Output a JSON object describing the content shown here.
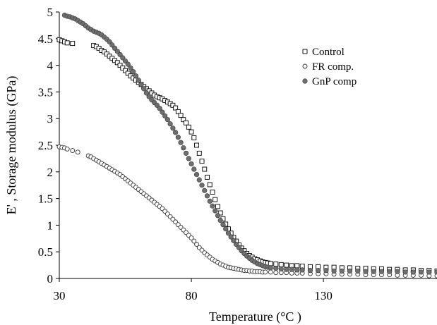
{
  "chart_data": {
    "type": "scatter",
    "title": "",
    "xlabel": "Temperature (°C )",
    "ylabel": "E' , Storage modulus (GPa)",
    "xlim": [
      30,
      173
    ],
    "ylim": [
      0,
      5
    ],
    "x_ticks": [
      30,
      80,
      130
    ],
    "y_ticks": [
      0,
      0.5,
      1,
      1.5,
      2,
      2.5,
      3,
      3.5,
      4,
      4.5,
      5
    ],
    "grid": false,
    "legend_position": "top-right",
    "series": [
      {
        "name": "Control",
        "marker": "square-open",
        "color": "#000000",
        "x": [
          30,
          31,
          32,
          33,
          35,
          43,
          44,
          45,
          46,
          47,
          48,
          49,
          50,
          51,
          52,
          53,
          54,
          55,
          56,
          57,
          58,
          59,
          60,
          61,
          62,
          63,
          64,
          65,
          66,
          67,
          68,
          69,
          70,
          71,
          72,
          73,
          74,
          75,
          76,
          77,
          78,
          79,
          80,
          81,
          82,
          83,
          84,
          85,
          86,
          87,
          88,
          89,
          90,
          91,
          92,
          93,
          94,
          95,
          96,
          97,
          98,
          99,
          100,
          101,
          102,
          103,
          104,
          105,
          106,
          107,
          108,
          109,
          110,
          112,
          114,
          116,
          118,
          120,
          122,
          125,
          128,
          131,
          134,
          137,
          140,
          143,
          146,
          149,
          152,
          155,
          158,
          161,
          164,
          167,
          170,
          173
        ],
        "y": [
          4.48,
          4.46,
          4.44,
          4.42,
          4.41,
          4.37,
          4.35,
          4.32,
          4.28,
          4.25,
          4.21,
          4.17,
          4.13,
          4.09,
          4.05,
          4.0,
          3.95,
          3.9,
          3.85,
          3.8,
          3.76,
          3.72,
          3.68,
          3.64,
          3.6,
          3.56,
          3.52,
          3.48,
          3.44,
          3.41,
          3.39,
          3.37,
          3.34,
          3.31,
          3.28,
          3.25,
          3.2,
          3.13,
          3.06,
          2.98,
          2.92,
          2.84,
          2.75,
          2.64,
          2.5,
          2.35,
          2.2,
          2.05,
          1.9,
          1.76,
          1.62,
          1.48,
          1.35,
          1.23,
          1.12,
          1.02,
          0.93,
          0.85,
          0.77,
          0.7,
          0.63,
          0.57,
          0.52,
          0.47,
          0.43,
          0.4,
          0.37,
          0.35,
          0.33,
          0.31,
          0.3,
          0.29,
          0.28,
          0.27,
          0.26,
          0.25,
          0.24,
          0.24,
          0.23,
          0.22,
          0.22,
          0.21,
          0.21,
          0.2,
          0.2,
          0.19,
          0.19,
          0.18,
          0.18,
          0.17,
          0.17,
          0.16,
          0.16,
          0.15,
          0.15,
          0.14
        ]
      },
      {
        "name": "FR comp.",
        "marker": "circle-open",
        "color": "#000000",
        "x": [
          30,
          31,
          32,
          33,
          35,
          37,
          41,
          42,
          43,
          44,
          45,
          46,
          47,
          48,
          49,
          50,
          51,
          52,
          53,
          54,
          55,
          56,
          57,
          58,
          59,
          60,
          61,
          62,
          63,
          64,
          65,
          66,
          67,
          68,
          69,
          70,
          71,
          72,
          73,
          74,
          75,
          76,
          77,
          78,
          79,
          80,
          81,
          82,
          83,
          84,
          85,
          86,
          87,
          88,
          89,
          90,
          91,
          92,
          93,
          94,
          95,
          96,
          97,
          98,
          99,
          100,
          101,
          102,
          103,
          104,
          105,
          106,
          107,
          108,
          110,
          112,
          114,
          116,
          118,
          120,
          122,
          125,
          128,
          131,
          134,
          137,
          140,
          143,
          146,
          149,
          152,
          155,
          158,
          161,
          164,
          167,
          170,
          173
        ],
        "y": [
          2.47,
          2.46,
          2.45,
          2.43,
          2.4,
          2.37,
          2.3,
          2.28,
          2.25,
          2.22,
          2.19,
          2.16,
          2.13,
          2.1,
          2.07,
          2.04,
          2.01,
          1.98,
          1.95,
          1.91,
          1.87,
          1.83,
          1.79,
          1.75,
          1.71,
          1.67,
          1.63,
          1.59,
          1.55,
          1.51,
          1.47,
          1.43,
          1.39,
          1.35,
          1.31,
          1.26,
          1.21,
          1.16,
          1.11,
          1.06,
          1.01,
          0.96,
          0.91,
          0.86,
          0.81,
          0.76,
          0.7,
          0.64,
          0.58,
          0.53,
          0.48,
          0.44,
          0.4,
          0.36,
          0.33,
          0.3,
          0.27,
          0.25,
          0.23,
          0.21,
          0.2,
          0.19,
          0.18,
          0.17,
          0.16,
          0.15,
          0.15,
          0.14,
          0.14,
          0.13,
          0.13,
          0.13,
          0.12,
          0.12,
          0.12,
          0.11,
          0.11,
          0.11,
          0.1,
          0.1,
          0.1,
          0.09,
          0.09,
          0.09,
          0.08,
          0.08,
          0.08,
          0.08,
          0.07,
          0.07,
          0.07,
          0.07,
          0.06,
          0.06,
          0.06,
          0.06,
          0.05,
          0.05
        ]
      },
      {
        "name": "GnP comp",
        "marker": "circle-filled",
        "color": "#6f6f6f",
        "x": [
          32,
          33,
          34,
          35,
          36,
          37,
          38,
          39,
          40,
          41,
          42,
          43,
          44,
          45,
          46,
          47,
          48,
          49,
          50,
          51,
          52,
          53,
          54,
          55,
          56,
          57,
          58,
          59,
          60,
          61,
          62,
          63,
          64,
          65,
          66,
          67,
          68,
          69,
          70,
          71,
          72,
          73,
          74,
          75,
          76,
          77,
          78,
          79,
          80,
          81,
          82,
          83,
          84,
          85,
          86,
          87,
          88,
          89,
          90,
          91,
          92,
          93,
          94,
          95,
          96,
          97,
          98,
          99,
          100,
          101,
          102,
          103,
          104,
          105,
          106,
          107,
          108,
          109,
          110,
          112,
          114,
          116,
          118,
          120,
          122,
          125,
          128,
          131,
          134,
          137,
          140,
          143,
          146,
          149,
          152,
          155,
          158,
          161,
          164,
          167,
          170,
          173
        ],
        "y": [
          4.94,
          4.92,
          4.91,
          4.89,
          4.87,
          4.84,
          4.81,
          4.78,
          4.74,
          4.7,
          4.67,
          4.64,
          4.62,
          4.6,
          4.57,
          4.53,
          4.49,
          4.44,
          4.38,
          4.32,
          4.26,
          4.2,
          4.14,
          4.08,
          4.02,
          3.95,
          3.88,
          3.8,
          3.72,
          3.64,
          3.56,
          3.48,
          3.41,
          3.35,
          3.3,
          3.25,
          3.19,
          3.12,
          3.05,
          2.98,
          2.9,
          2.82,
          2.74,
          2.65,
          2.55,
          2.45,
          2.35,
          2.25,
          2.15,
          2.05,
          1.95,
          1.85,
          1.75,
          1.65,
          1.55,
          1.45,
          1.36,
          1.27,
          1.18,
          1.09,
          1.01,
          0.93,
          0.85,
          0.78,
          0.71,
          0.64,
          0.58,
          0.52,
          0.47,
          0.42,
          0.38,
          0.34,
          0.31,
          0.28,
          0.26,
          0.24,
          0.22,
          0.21,
          0.2,
          0.19,
          0.18,
          0.17,
          0.17,
          0.16,
          0.16,
          0.15,
          0.15,
          0.15,
          0.14,
          0.14,
          0.14,
          0.14,
          0.13,
          0.13,
          0.13,
          0.13,
          0.13,
          0.12,
          0.12,
          0.12,
          0.12,
          0.12
        ]
      }
    ]
  }
}
